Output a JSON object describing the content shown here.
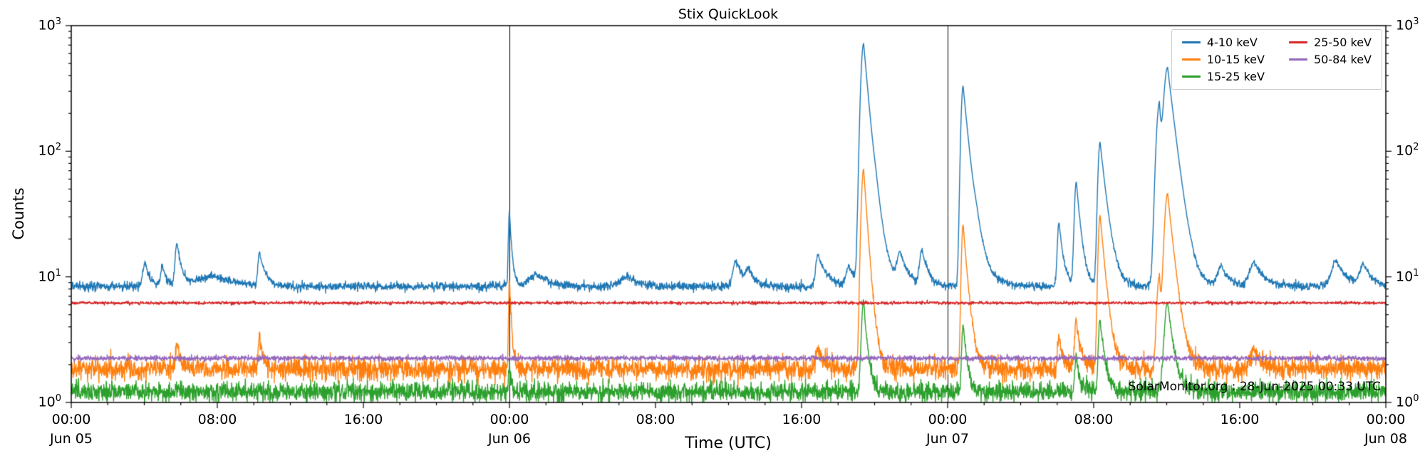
{
  "chart_data": {
    "type": "line",
    "title": "Stix QuickLook",
    "xlabel": "Time (UTC)",
    "ylabel": "Counts",
    "annotation": "SolarMonitor.org : 28-Jun-2025 00:33 UTC",
    "y_scale": "log",
    "ylim": [
      1,
      1000
    ],
    "y_ticks": [
      {
        "value": 1000,
        "base": "10",
        "exp": "3"
      },
      {
        "value": 100,
        "base": "10",
        "exp": "2"
      },
      {
        "value": 10,
        "base": "10",
        "exp": "1"
      },
      {
        "value": 1,
        "base": "10",
        "exp": "0"
      }
    ],
    "x_range_hours": [
      0,
      72
    ],
    "x_ticks": [
      {
        "hour": 0,
        "time": "00:00",
        "date": "Jun 05"
      },
      {
        "hour": 8,
        "time": "08:00",
        "date": ""
      },
      {
        "hour": 16,
        "time": "16:00",
        "date": ""
      },
      {
        "hour": 24,
        "time": "00:00",
        "date": "Jun 06"
      },
      {
        "hour": 32,
        "time": "08:00",
        "date": ""
      },
      {
        "hour": 40,
        "time": "16:00",
        "date": ""
      },
      {
        "hour": 48,
        "time": "00:00",
        "date": "Jun 07"
      },
      {
        "hour": 56,
        "time": "08:00",
        "date": ""
      },
      {
        "hour": 64,
        "time": "16:00",
        "date": ""
      },
      {
        "hour": 72,
        "time": "00:00",
        "date": "Jun 08"
      }
    ],
    "day_boundaries_hours": [
      24,
      48
    ],
    "legend_position": "upper right",
    "grid": false,
    "series": [
      {
        "name": "4-10 keV",
        "color": "#1f77b4",
        "baseline": 8.4,
        "noise": 0.04,
        "flares": [
          {
            "t": 4.05,
            "peak": 13,
            "rise": 0.12,
            "decay": 0.25
          },
          {
            "t": 5.0,
            "peak": 12,
            "rise": 0.1,
            "decay": 0.2
          },
          {
            "t": 5.8,
            "peak": 18.5,
            "rise": 0.1,
            "decay": 0.22
          },
          {
            "t": 7.9,
            "peak": 10.2,
            "rise": 0.9,
            "decay": 1.1
          },
          {
            "t": 10.3,
            "peak": 15.5,
            "rise": 0.07,
            "decay": 0.3
          },
          {
            "t": 24.0,
            "peak": 33,
            "rise": 0.05,
            "decay": 0.12
          },
          {
            "t": 25.5,
            "peak": 10.5,
            "rise": 0.4,
            "decay": 0.7
          },
          {
            "t": 30.5,
            "peak": 10,
            "rise": 0.4,
            "decay": 0.6
          },
          {
            "t": 36.4,
            "peak": 13.5,
            "rise": 0.15,
            "decay": 0.4
          },
          {
            "t": 37.1,
            "peak": 11,
            "rise": 0.12,
            "decay": 0.3
          },
          {
            "t": 40.9,
            "peak": 15,
            "rise": 0.12,
            "decay": 0.45
          },
          {
            "t": 42.6,
            "peak": 12,
            "rise": 0.15,
            "decay": 0.35
          },
          {
            "t": 43.4,
            "peak": 720,
            "rise": 0.13,
            "decay": 0.26
          },
          {
            "t": 44.1,
            "peak": 18,
            "rise": 0.2,
            "decay": 0.5
          },
          {
            "t": 45.4,
            "peak": 15,
            "rise": 0.15,
            "decay": 0.4
          },
          {
            "t": 46.6,
            "peak": 16,
            "rise": 0.12,
            "decay": 0.3
          },
          {
            "t": 48.85,
            "peak": 330,
            "rise": 0.1,
            "decay": 0.28
          },
          {
            "t": 49.6,
            "peak": 15,
            "rise": 0.2,
            "decay": 0.6
          },
          {
            "t": 54.1,
            "peak": 27,
            "rise": 0.08,
            "decay": 0.22
          },
          {
            "t": 55.05,
            "peak": 57,
            "rise": 0.09,
            "decay": 0.22
          },
          {
            "t": 56.35,
            "peak": 118,
            "rise": 0.1,
            "decay": 0.3
          },
          {
            "t": 59.6,
            "peak": 230,
            "rise": 0.15,
            "decay": 0.12
          },
          {
            "t": 60.05,
            "peak": 460,
            "rise": 0.18,
            "decay": 0.35
          },
          {
            "t": 63.0,
            "peak": 12,
            "rise": 0.2,
            "decay": 0.4
          },
          {
            "t": 64.8,
            "peak": 13,
            "rise": 0.25,
            "decay": 0.5
          },
          {
            "t": 69.3,
            "peak": 13.5,
            "rise": 0.25,
            "decay": 0.5
          },
          {
            "t": 70.8,
            "peak": 12.5,
            "rise": 0.2,
            "decay": 0.4
          }
        ]
      },
      {
        "name": "10-15 keV",
        "color": "#ff7f0e",
        "baseline": 1.85,
        "noise": 0.1,
        "flares": [
          {
            "t": 5.8,
            "peak": 2.9,
            "rise": 0.08,
            "decay": 0.2
          },
          {
            "t": 10.3,
            "peak": 3.6,
            "rise": 0.06,
            "decay": 0.18
          },
          {
            "t": 24.0,
            "peak": 9.5,
            "rise": 0.04,
            "decay": 0.1
          },
          {
            "t": 40.9,
            "peak": 2.7,
            "rise": 0.1,
            "decay": 0.3
          },
          {
            "t": 43.4,
            "peak": 72,
            "rise": 0.11,
            "decay": 0.2
          },
          {
            "t": 48.85,
            "peak": 26,
            "rise": 0.08,
            "decay": 0.22
          },
          {
            "t": 54.1,
            "peak": 3.4,
            "rise": 0.07,
            "decay": 0.2
          },
          {
            "t": 55.05,
            "peak": 4.6,
            "rise": 0.08,
            "decay": 0.2
          },
          {
            "t": 56.35,
            "peak": 31,
            "rise": 0.09,
            "decay": 0.25
          },
          {
            "t": 59.6,
            "peak": 10,
            "rise": 0.12,
            "decay": 0.1
          },
          {
            "t": 60.05,
            "peak": 46,
            "rise": 0.15,
            "decay": 0.3
          },
          {
            "t": 64.8,
            "peak": 2.6,
            "rise": 0.2,
            "decay": 0.4
          }
        ]
      },
      {
        "name": "15-25 keV",
        "color": "#2ca02c",
        "baseline": 1.22,
        "noise": 0.09,
        "flares": [
          {
            "t": 24.0,
            "peak": 2.0,
            "rise": 0.04,
            "decay": 0.08
          },
          {
            "t": 43.4,
            "peak": 6.5,
            "rise": 0.1,
            "decay": 0.18
          },
          {
            "t": 48.85,
            "peak": 4.2,
            "rise": 0.07,
            "decay": 0.18
          },
          {
            "t": 55.05,
            "peak": 2.3,
            "rise": 0.08,
            "decay": 0.18
          },
          {
            "t": 56.35,
            "peak": 4.6,
            "rise": 0.08,
            "decay": 0.22
          },
          {
            "t": 60.05,
            "peak": 6.3,
            "rise": 0.15,
            "decay": 0.28
          }
        ]
      },
      {
        "name": "25-50 keV",
        "color": "#d62728",
        "baseline": 6.2,
        "noise": 0.013,
        "flares": []
      },
      {
        "name": "50-84 keV",
        "color": "#9467bd",
        "baseline": 2.25,
        "noise": 0.022,
        "flares": []
      }
    ]
  }
}
